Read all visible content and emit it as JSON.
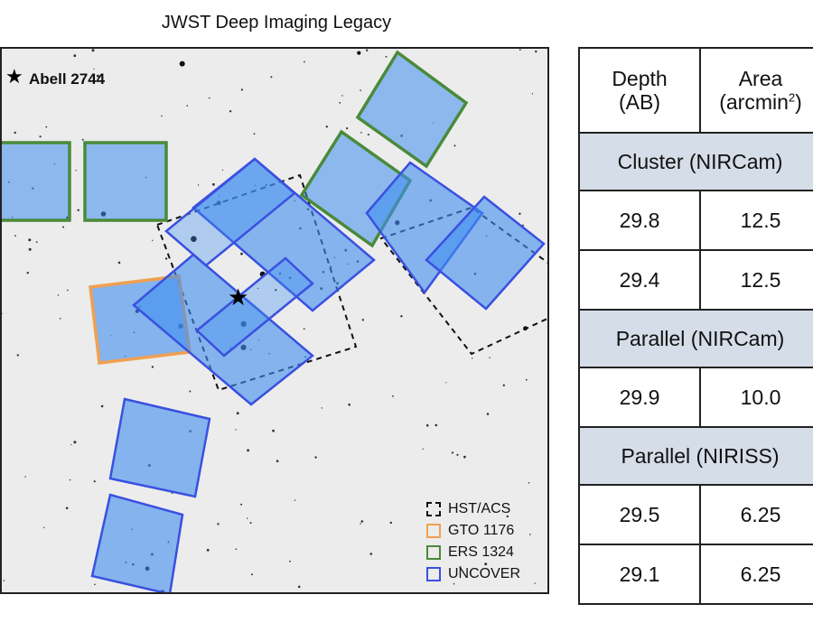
{
  "title": "JWST Deep Imaging Legacy",
  "map": {
    "target_label": "Abell 2744",
    "target_marker": "★"
  },
  "legend": [
    {
      "label": "HST/ACS",
      "color": "#111111",
      "style": "dashed"
    },
    {
      "label": "GTO 1176",
      "color": "#f0a050",
      "style": "solid"
    },
    {
      "label": "ERS 1324",
      "color": "#4a8a3a",
      "style": "solid"
    },
    {
      "label": "UNCOVER",
      "color": "#3a50e0",
      "style": "solid"
    }
  ],
  "colors": {
    "uncover_fill": "#3f8ef0",
    "uncover_edge": "#3a50e0",
    "ers_edge": "#4a8a3a",
    "gto_edge": "#f0a050",
    "table_section_bg": "#d5dde8"
  },
  "table": {
    "header": {
      "depth_line1": "Depth",
      "depth_line2": "(AB)",
      "area_line1": "Area",
      "area_line2": "(arcmin",
      "area_sup": "2",
      "area_close": ")"
    },
    "sections": [
      {
        "title": "Cluster (NIRCam)",
        "rows": [
          [
            "29.8",
            "12.5"
          ],
          [
            "29.4",
            "12.5"
          ]
        ]
      },
      {
        "title": "Parallel (NIRCam)",
        "rows": [
          [
            "29.9",
            "10.0"
          ]
        ]
      },
      {
        "title": "Parallel (NIRISS)",
        "rows": [
          [
            "29.5",
            "6.25"
          ],
          [
            "29.1",
            "6.25"
          ]
        ]
      }
    ]
  }
}
